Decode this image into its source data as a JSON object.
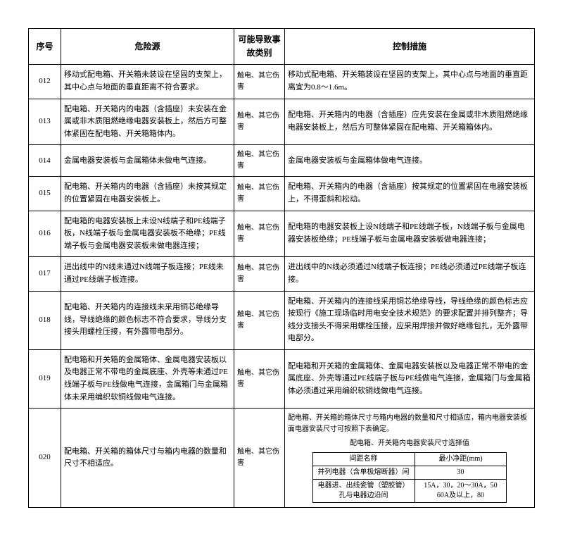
{
  "headers": {
    "seq": "序号",
    "hazard": "危险源",
    "category": "可能导致事故类别",
    "measure": "控制措施"
  },
  "rows": [
    {
      "seq": "012",
      "hazard": "移动式配电箱、开关箱未装设在坚固的支架上，其中心点与地面的垂直距离不符合要求。",
      "category": "触电、其它伤害",
      "measure": "移动式配电箱、开关箱装设在坚固的支架上，其中心点与地面的垂直距离宜为0.8～1.6m。"
    },
    {
      "seq": "013",
      "hazard": "配电箱、开关箱内的电器（含插座）未安装在金属或非木质阻燃绝缘电器安装板上，然后方可整体紧固在配电箱、开关箱箱体内。",
      "category": "触电、其它伤害",
      "measure": "配电箱、开关箱内的电器（含插座）应先安装在金属或非木质阻燃绝缘电器安装板上，然后方可整体紧固在配电箱、开关箱箱体内。"
    },
    {
      "seq": "014",
      "hazard": "金属电器安装板与金属箱体未做电气连接。",
      "category": "触电、其它伤害",
      "measure": "金属电器安装板与金属箱体做电气连接。"
    },
    {
      "seq": "015",
      "hazard": "配电箱、开关箱内的电器（含插座）未按其规定的位置紧固在电器安装板上。",
      "category": "触电、其它伤害",
      "measure": "配电箱、开关箱内的电器（含插座）按其规定的位置紧固在电器安装板上，不得歪斜和松动。"
    },
    {
      "seq": "016",
      "hazard": "配电箱的电器安装板上未设N线端子和PE线端子板，N线端子板与金属电器安装板不绝缘；PE线端子板与金属电器安装板未做电器连接；",
      "category": "触电、其它伤害",
      "measure": "配电箱的电器安装板上设N线端子和PE线端子板，N线端子板与金属电器安装板绝缘；PE线端子板与金属电器安装板做电器连接；"
    },
    {
      "seq": "017",
      "hazard": "进出线中的N线未通过N线端子板连接；PE线未通过PE线端子板连接。",
      "category": "触电、其它伤害",
      "measure": "进出线中的N线必须通过N线端子板连接；PE线必须通过PE线端子板连接。"
    },
    {
      "seq": "018",
      "hazard": "配电箱、开关箱内的连接线未采用铜芯绝缘导线，导线绝缘的颜色标志不符合要求，导线分支接头用螺栓压接，有外露带电部分。",
      "category": "触电、其它伤害",
      "measure": "配电箱、开关箱内的连接线采用铜芯绝缘导线，导线绝缘的颜色标志应按现行《施工现场临时用电安全技术规范》的要求配置并排列整齐；导线分支接头不得采用螺栓压接，应采用焊接并做好绝缘包扎，无外露带电部分。"
    },
    {
      "seq": "019",
      "hazard": "配电箱和开关箱的金属箱体、金属电器安装板以及电器正常不带电的金属底座、外壳等未通过PE线端子板与PE线做电气连接，金属箱门与金属箱体未采用编织软铜线做电气连接。",
      "category": "触电、其它伤害",
      "measure": "配电箱和开关箱的金属箱体、金属电器安装板以及电器正常不带电的金属底座、外壳等通过PE线端子板与PE线做电气连接，金属箱门与金属箱体必须通过采用编织软铜线做电气连接。"
    },
    {
      "seq": "020",
      "hazard": "配电箱、开关箱的箱体尺寸与箱内电器的数量和尺寸不相适应。",
      "category": "触电、其它伤害",
      "measure_intro": "配电箱、开关箱的箱体尺寸与箱内电器的数量和尺寸相适应，箱内电器安装板面电器安装尺寸可按照下表确定。",
      "inner": {
        "title": "配电箱、开关箱内电器安装尺寸选择值",
        "col_headers": [
          "间距名称",
          "最小净距(mm)"
        ],
        "r1": [
          "并列电器（含单极熔断器）间",
          "30"
        ],
        "r2": [
          "电器进、出线瓷管（塑胶管）孔与电器边沿间",
          "15A，30，20～30A，50 60A及以上，80"
        ]
      }
    }
  ]
}
